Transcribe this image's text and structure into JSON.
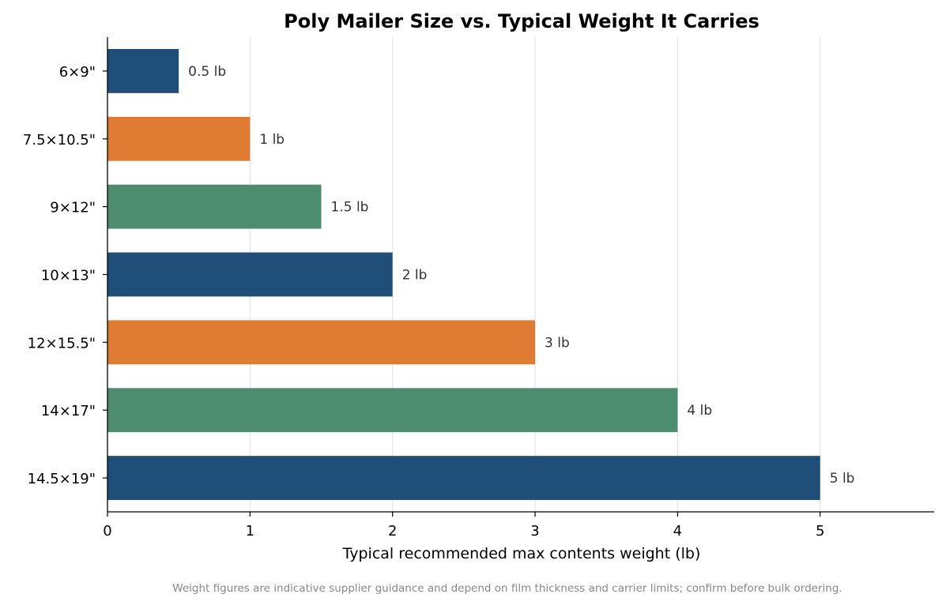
{
  "chart_data": {
    "type": "bar",
    "orientation": "horizontal",
    "title": "Poly Mailer Size vs. Typical Weight It Carries",
    "xlabel": "Typical recommended max contents weight (lb)",
    "ylabel": "",
    "categories": [
      "6×9\"",
      "7.5×10.5\"",
      "9×12\"",
      "10×13\"",
      "12×15.5\"",
      "14×17\"",
      "14.5×19\""
    ],
    "values": [
      0.5,
      1,
      1.5,
      2,
      3,
      4,
      5
    ],
    "data_labels": [
      "0.5 lb",
      "1 lb",
      "1.5 lb",
      "2 lb",
      "3 lb",
      "4 lb",
      "5 lb"
    ],
    "bar_colors": [
      "#1f4e79",
      "#e07b33",
      "#4e8c6f",
      "#1f4e79",
      "#e07b33",
      "#4e8c6f",
      "#1f4e79"
    ],
    "xlim": [
      0,
      5.8
    ],
    "xticks": [
      0,
      1,
      2,
      3,
      4,
      5
    ],
    "grid": "vertical",
    "legend": "none"
  },
  "footnote": "Weight figures are indicative supplier guidance and depend on film thickness and carrier limits; confirm before bulk ordering."
}
